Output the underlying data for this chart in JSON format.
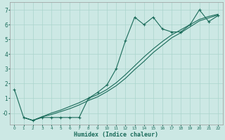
{
  "xlabel": "Humidex (Indice chaleur)",
  "background_color": "#cce8e4",
  "grid_color": "#aad4cc",
  "line_color": "#1a6b5a",
  "xlim": [
    -0.5,
    22.5
  ],
  "ylim": [
    -0.8,
    7.5
  ],
  "xticks": [
    0,
    1,
    2,
    3,
    4,
    5,
    6,
    7,
    8,
    9,
    10,
    11,
    12,
    13,
    14,
    15,
    16,
    17,
    18,
    19,
    20,
    21,
    22
  ],
  "yticks": [
    0,
    1,
    2,
    3,
    4,
    5,
    6,
    7
  ],
  "ytick_labels": [
    "-0",
    "1",
    "2",
    "3",
    "4",
    "5",
    "6",
    "7"
  ],
  "line1_x": [
    0,
    1,
    2,
    3,
    4,
    5,
    6,
    7,
    8,
    9,
    10,
    11,
    12,
    13,
    14,
    15,
    16,
    17,
    18,
    19,
    20,
    21,
    22
  ],
  "line1_y": [
    1.6,
    -0.3,
    -0.5,
    -0.3,
    -0.3,
    -0.3,
    -0.3,
    -0.3,
    1.0,
    1.4,
    1.9,
    3.0,
    4.9,
    6.5,
    6.0,
    6.5,
    5.7,
    5.5,
    5.5,
    6.0,
    7.0,
    6.2,
    6.6
  ],
  "line2_x": [
    1,
    2,
    3,
    4,
    5,
    6,
    7,
    8,
    9,
    10,
    11,
    12,
    13,
    14,
    15,
    16,
    17,
    18,
    19,
    20,
    21,
    22
  ],
  "line2_y": [
    -0.3,
    -0.5,
    -0.25,
    -0.1,
    0.1,
    0.3,
    0.55,
    0.85,
    1.1,
    1.45,
    1.85,
    2.35,
    2.95,
    3.5,
    4.1,
    4.6,
    5.1,
    5.45,
    5.85,
    6.25,
    6.45,
    6.65
  ],
  "line3_x": [
    1,
    2,
    3,
    4,
    5,
    6,
    7,
    8,
    9,
    10,
    11,
    12,
    13,
    14,
    15,
    16,
    17,
    18,
    19,
    20,
    21,
    22
  ],
  "line3_y": [
    -0.3,
    -0.5,
    -0.25,
    0.0,
    0.2,
    0.45,
    0.7,
    1.0,
    1.25,
    1.6,
    2.05,
    2.6,
    3.2,
    3.8,
    4.35,
    4.85,
    5.3,
    5.65,
    6.0,
    6.35,
    6.55,
    6.7
  ]
}
